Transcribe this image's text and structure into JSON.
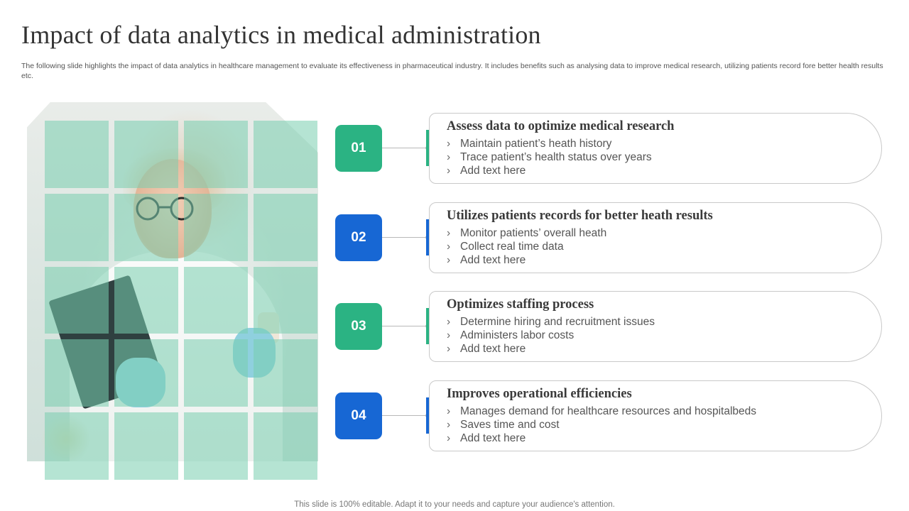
{
  "title": "Impact of data analytics in medical administration",
  "subtitle": "The following slide highlights the impact of data analytics in healthcare management to evaluate its effectiveness in pharmaceutical industry. It includes benefits such as analysing data to improve medical research, utilizing patients record fore better health results etc.",
  "colors": {
    "green": "#2bb383",
    "blue": "#1767d4",
    "grid_tint": "#78cdaf"
  },
  "icons": {
    "bullet": "›"
  },
  "items": [
    {
      "number": "01",
      "color": "#2bb383",
      "heading": "Assess data to optimize medical research",
      "points": [
        "Maintain patient’s heath history",
        "Trace patient’s health status over years",
        "Add text here"
      ]
    },
    {
      "number": "02",
      "color": "#1767d4",
      "heading": "Utilizes patients records for better heath results",
      "points": [
        "Monitor patients’ overall heath",
        "Collect real time data",
        "Add text here"
      ]
    },
    {
      "number": "03",
      "color": "#2bb383",
      "heading": "Optimizes staffing process",
      "points": [
        "Determine hiring and recruitment issues",
        "Administers labor costs",
        "Add text here"
      ]
    },
    {
      "number": "04",
      "color": "#1767d4",
      "heading": "Improves operational efficiencies",
      "points": [
        "Manages demand for healthcare resources and hospitalbeds",
        "Saves time and cost",
        "Add text here"
      ]
    }
  ],
  "footer": "This slide is 100% editable. Adapt it to your needs and capture your audience's attention."
}
